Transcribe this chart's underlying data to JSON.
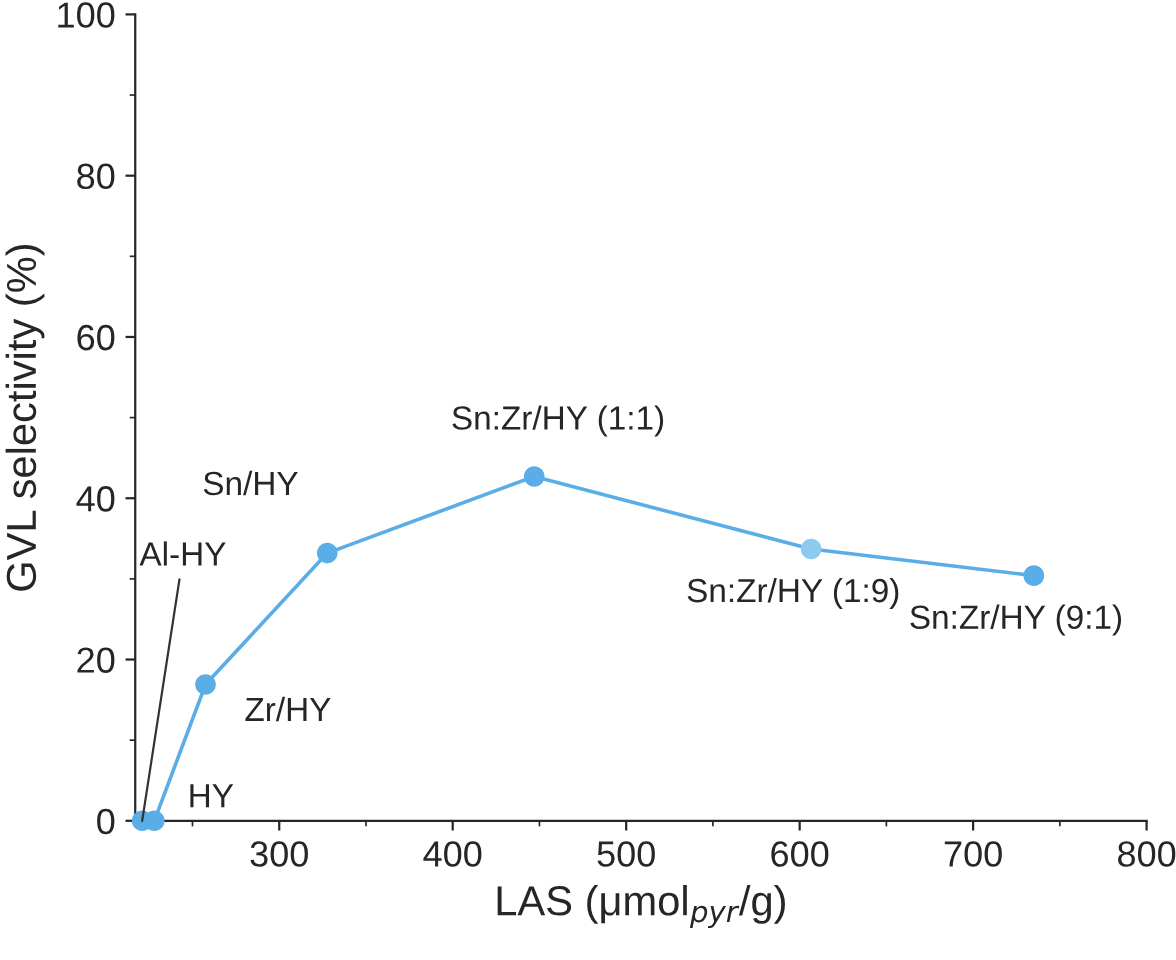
{
  "chart_data": {
    "type": "line",
    "xlabel": "LAS (μmol$_{pyr}$/g)",
    "ylabel": "GVL selectivity (%)",
    "x": [
      221,
      228,
      257.5,
      327.7,
      447,
      606.6,
      735
    ],
    "series": [
      {
        "color": "#5aade6",
        "colors": [
          "#5aade6",
          "#5aade6",
          "#5aade6",
          "#5aade6",
          "#5aade6",
          "#8ecaf0",
          "#5aade6"
        ],
        "values": [
          0,
          0,
          16.9,
          33.2,
          42.7,
          33.7,
          30.4
        ]
      }
    ],
    "marker": "circle",
    "line_style": "solid",
    "xlim": [
      217,
      800
    ],
    "xticks": [
      300,
      400,
      500,
      600,
      700,
      800
    ],
    "ylim": [
      0,
      100
    ],
    "yticks": [
      0,
      20,
      40,
      60,
      80,
      100
    ],
    "grid": false,
    "legend": false,
    "annotations": [
      {
        "text": "Al-HY",
        "x": 221,
        "y": 0
      },
      {
        "text": "HY",
        "x": 228,
        "y": 0
      },
      {
        "text": "Zr/HY",
        "x": 257.5,
        "y": 16.9
      },
      {
        "text": "Sn/HY",
        "x": 327.7,
        "y": 33.2
      },
      {
        "text": "Sn:Zr/HY (1:1)",
        "x": 447,
        "y": 42.7
      },
      {
        "text": "Sn:Zr/HY (1:9)",
        "x": 606.6,
        "y": 33.7
      },
      {
        "text": "Sn:Zr/HY (9:1)",
        "x": 735,
        "y": 30.4
      }
    ]
  }
}
